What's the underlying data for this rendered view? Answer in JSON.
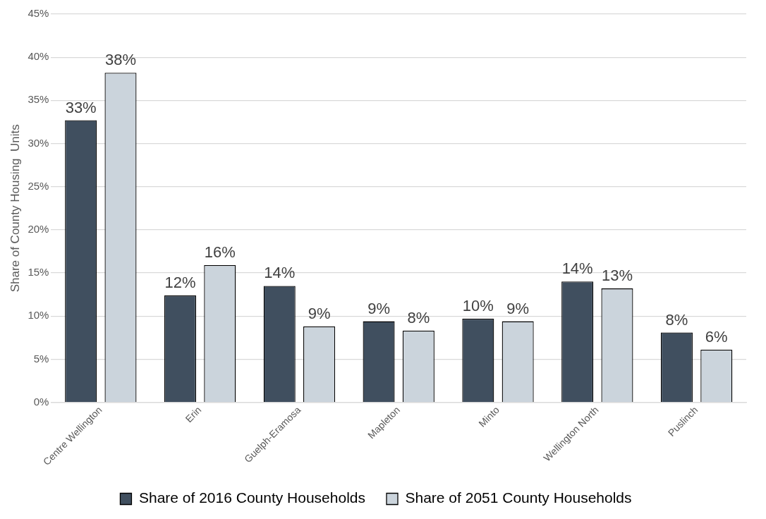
{
  "chart_data": {
    "type": "bar",
    "ylabel": "Share of County Housing  Units",
    "categories": [
      "Centre Wellington",
      "Erin",
      "Guelph-Eramosa",
      "Mapleton",
      "Minto",
      "Wellington North",
      "Puslinch"
    ],
    "series": [
      {
        "name": "Share of 2016 County Households",
        "color": "#404f5f",
        "values": [
          32.7,
          12.4,
          13.5,
          9.4,
          9.7,
          14.0,
          8.1
        ],
        "value_labels": [
          "33%",
          "12%",
          "14%",
          "9%",
          "10%",
          "14%",
          "8%"
        ]
      },
      {
        "name": "Share of 2051 County Households",
        "color": "#cbd4dc",
        "values": [
          38.2,
          15.9,
          8.8,
          8.3,
          9.4,
          13.2,
          6.1
        ],
        "value_labels": [
          "38%",
          "16%",
          "9%",
          "8%",
          "9%",
          "13%",
          "6%"
        ]
      }
    ],
    "ylim": [
      0,
      45
    ],
    "yticks": [
      {
        "value": 0,
        "label": "0%"
      },
      {
        "value": 5,
        "label": "5%"
      },
      {
        "value": 10,
        "label": "10%"
      },
      {
        "value": 15,
        "label": "15%"
      },
      {
        "value": 20,
        "label": "20%"
      },
      {
        "value": 25,
        "label": "25%"
      },
      {
        "value": 30,
        "label": "30%"
      },
      {
        "value": 35,
        "label": "35%"
      },
      {
        "value": 40,
        "label": "40%"
      },
      {
        "value": 45,
        "label": "45%"
      }
    ],
    "grid": "y",
    "legend": "bottom"
  }
}
